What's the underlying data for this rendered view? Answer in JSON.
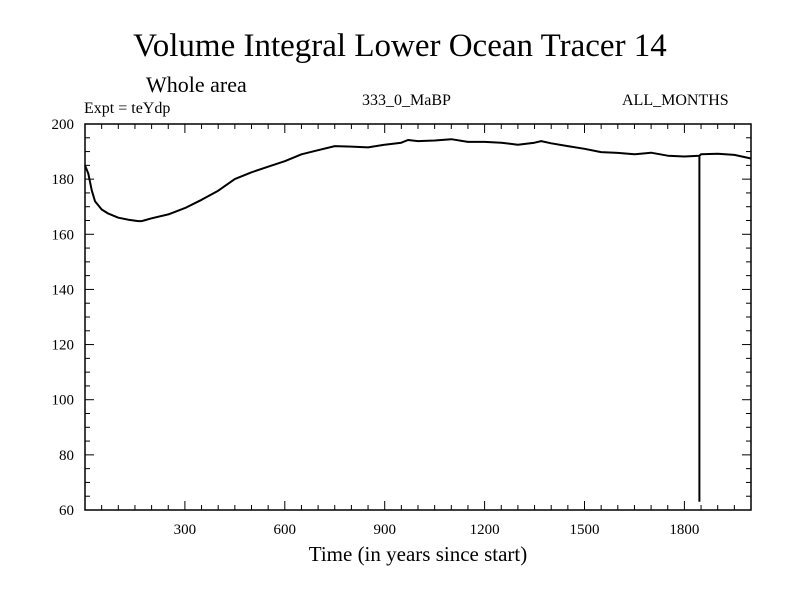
{
  "chart_data": {
    "type": "line",
    "title": "Volume Integral Lower Ocean Tracer 14",
    "subtitle": "Whole area",
    "expt_label": "Expt = teYdp",
    "run_label": "333_0_MaBP",
    "months_label": "ALL_MONTHS",
    "xlabel": "Time (in years since start)",
    "ylabel": "",
    "xlim": [
      0,
      2000
    ],
    "ylim": [
      60,
      200
    ],
    "xticks": [
      300,
      600,
      900,
      1200,
      1500,
      1800
    ],
    "yticks": [
      60,
      80,
      100,
      120,
      140,
      160,
      180,
      200
    ],
    "grid": false,
    "series": [
      {
        "name": "Tracer 14",
        "x": [
          0,
          10,
          20,
          30,
          50,
          70,
          100,
          130,
          160,
          170,
          200,
          250,
          300,
          350,
          400,
          450,
          500,
          550,
          600,
          650,
          700,
          750,
          800,
          850,
          900,
          950,
          970,
          1000,
          1050,
          1100,
          1150,
          1200,
          1250,
          1300,
          1350,
          1370,
          1400,
          1450,
          1500,
          1550,
          1600,
          1650,
          1700,
          1750,
          1800,
          1845,
          1850,
          1900,
          1950,
          2000
        ],
        "y": [
          185,
          182,
          176,
          172,
          169,
          167.5,
          166,
          165.3,
          164.8,
          164.8,
          165.8,
          167.2,
          169.5,
          172.5,
          175.8,
          180,
          182.5,
          184.5,
          186.5,
          189,
          190.5,
          192,
          191.8,
          191.5,
          192.5,
          193.2,
          194.2,
          193.8,
          194,
          194.5,
          193.5,
          193.5,
          193.2,
          192.5,
          193.2,
          193.8,
          193,
          192,
          191,
          189.8,
          189.5,
          189,
          189.6,
          188.5,
          188.2,
          188.5,
          189,
          189.2,
          188.8,
          187.5
        ]
      },
      {
        "name": "marker",
        "x": [
          1845,
          1845
        ],
        "y": [
          188.5,
          63
        ]
      }
    ]
  }
}
